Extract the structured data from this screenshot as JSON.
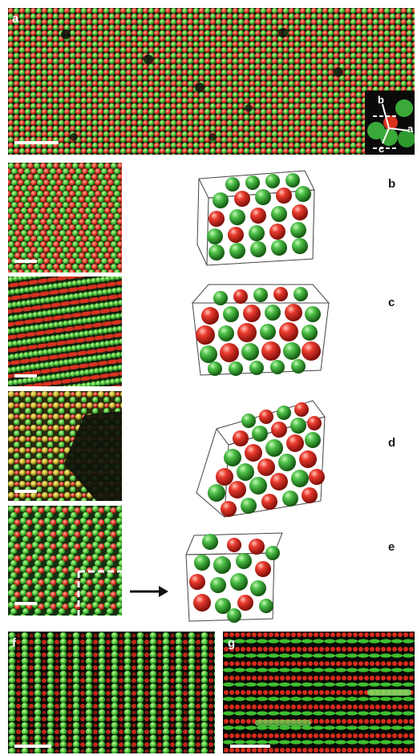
{
  "figure": {
    "panel_labels": {
      "a": "a",
      "b": "b",
      "c": "c",
      "d": "d",
      "e": "e",
      "f": "f",
      "g": "g"
    },
    "inset_axes": {
      "a": "a",
      "b": "b",
      "c": "c"
    }
  },
  "colors": {
    "particle_red": "#e23a2a",
    "particle_green": "#4cc43a",
    "background_dark": "#0b1a0b",
    "sphere_green": "#2fa52f",
    "sphere_red": "#e5322b"
  }
}
